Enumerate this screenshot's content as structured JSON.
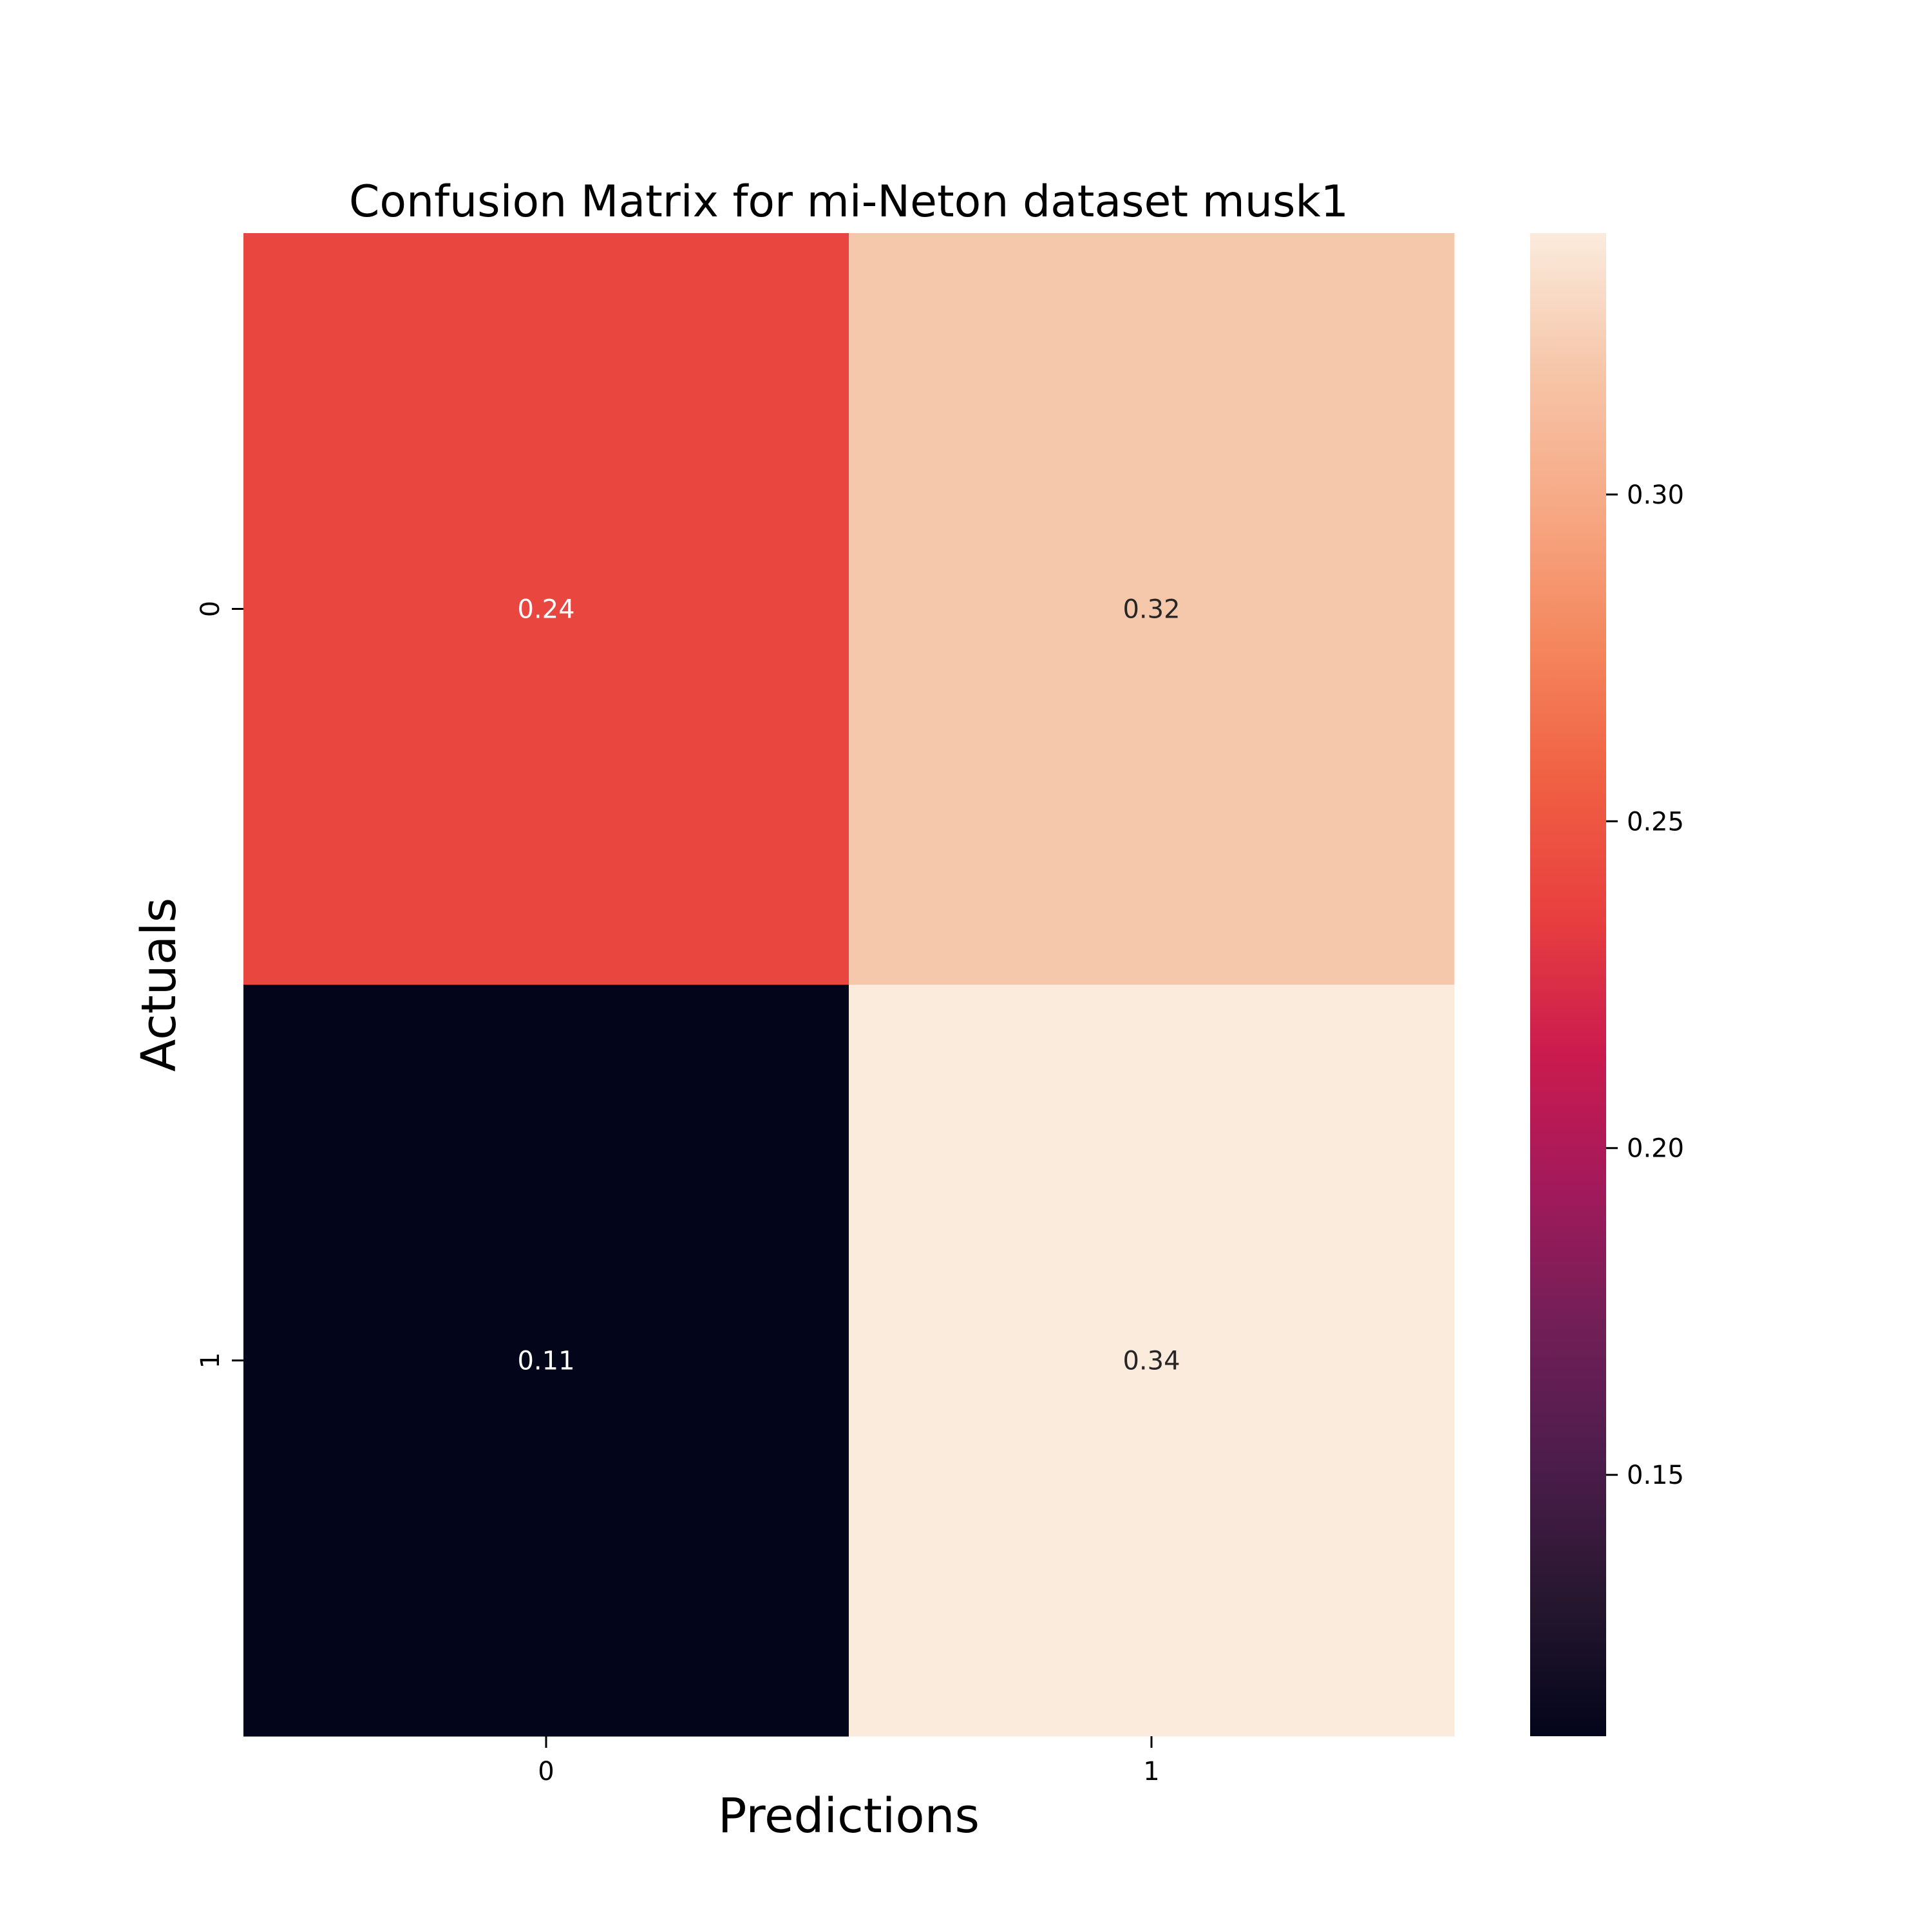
{
  "chart_data": {
    "type": "heatmap",
    "title": "Confusion Matrix for mi-Neton dataset musk1",
    "xlabel": "Predictions",
    "ylabel": "Actuals",
    "x_categories": [
      "0",
      "1"
    ],
    "y_categories": [
      "0",
      "1"
    ],
    "values": [
      [
        0.24,
        0.32
      ],
      [
        0.11,
        0.34
      ]
    ],
    "cell_labels": [
      [
        "0.24",
        "0.32"
      ],
      [
        "0.11",
        "0.34"
      ]
    ],
    "colorbar": {
      "vmin": 0.11,
      "vmax": 0.34,
      "ticks": [
        0.15,
        0.2,
        0.25,
        0.3
      ],
      "tick_labels": [
        "0.15",
        "0.20",
        "0.25",
        "0.30"
      ],
      "colormap": "rocket",
      "colormap_stops": [
        "#03051a",
        "#26172f",
        "#4c1d4b",
        "#711f57",
        "#a11a5b",
        "#cb1b4f",
        "#e83f3f",
        "#f06043",
        "#f4875e",
        "#f6a985",
        "#f6c6a9",
        "#faebdd"
      ]
    },
    "grid": false,
    "legend": "none"
  }
}
